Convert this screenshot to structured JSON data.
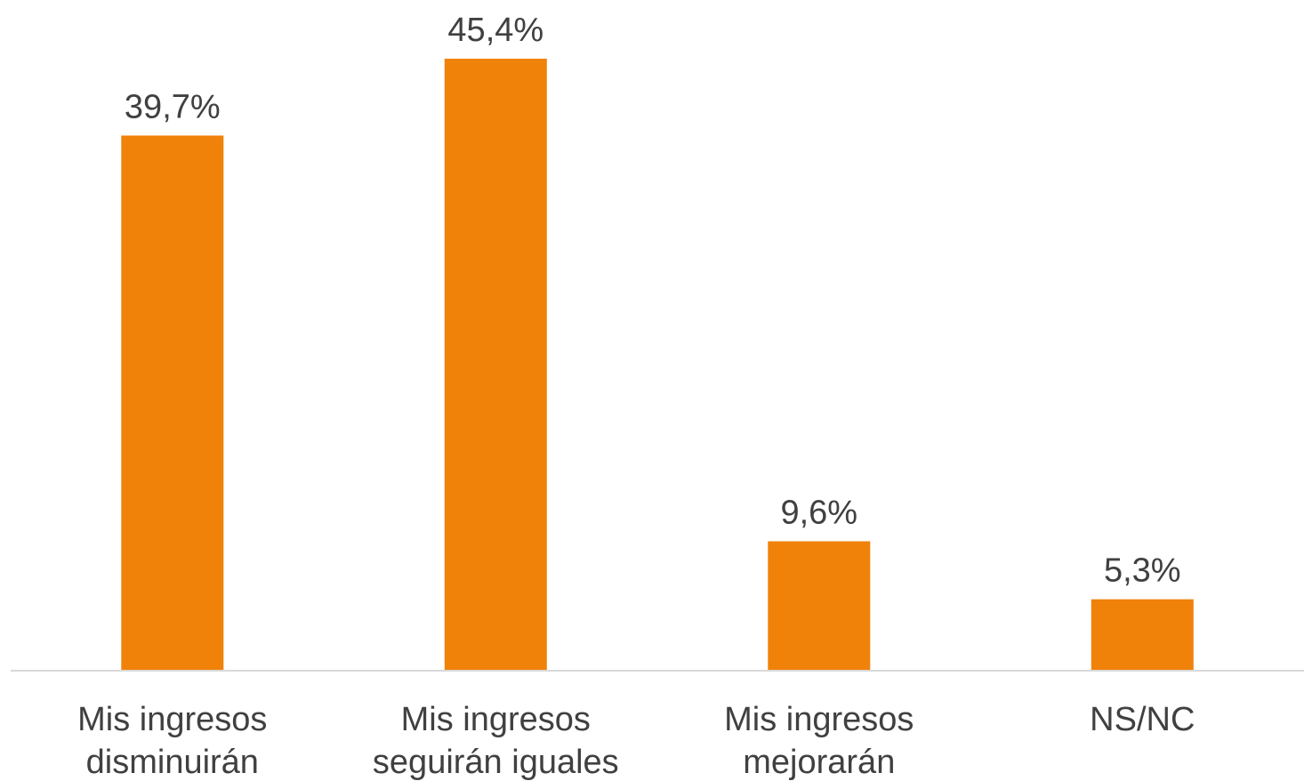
{
  "chart_data": {
    "type": "bar",
    "categories": [
      [
        "Mis ingresos",
        "disminuirán"
      ],
      [
        "Mis ingresos",
        "seguirán iguales"
      ],
      [
        "Mis ingresos",
        "mejorarán"
      ],
      [
        "NS/NC"
      ]
    ],
    "values": [
      39.7,
      45.4,
      9.6,
      5.3
    ],
    "value_labels": [
      "39,7%",
      "45,4%",
      "9,6%",
      "5,3%"
    ],
    "ylim": [
      0,
      45.4
    ],
    "grid": false,
    "legend": "none",
    "bar_color": "#F0820A",
    "axis_color": "#D9D9D9",
    "text_color": "#404040"
  }
}
